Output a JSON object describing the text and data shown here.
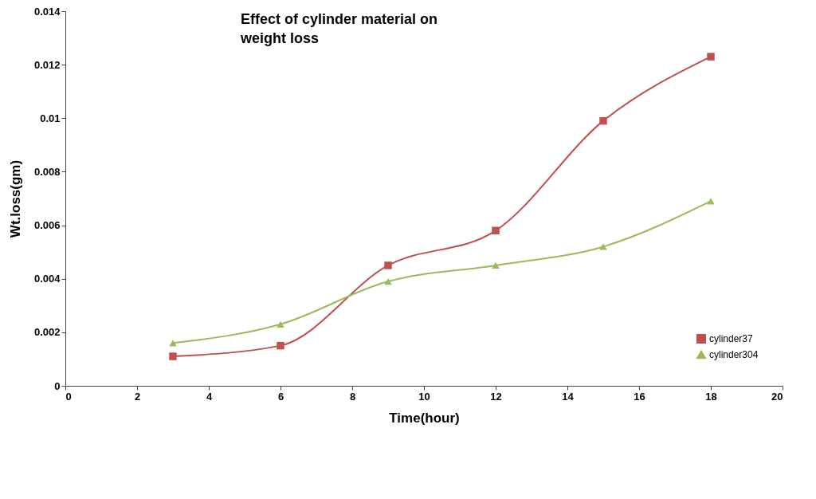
{
  "chart_data": {
    "type": "line",
    "title": "Effect of cylinder material on\nweight loss",
    "xlabel": "Time(hour)",
    "ylabel": "Wt.loss(gm)",
    "x": [
      3,
      6,
      9,
      12,
      15,
      18
    ],
    "series": [
      {
        "name": "cylinder37",
        "color": "#c0504d",
        "marker": "square",
        "values": [
          0.0011,
          0.0015,
          0.0045,
          0.0058,
          0.0099,
          0.0123
        ]
      },
      {
        "name": "cylinder304",
        "color": "#9bbb59",
        "marker": "triangle",
        "values": [
          0.0016,
          0.0023,
          0.0039,
          0.0045,
          0.0052,
          0.0069
        ]
      }
    ],
    "xlim": [
      0,
      20
    ],
    "xticks": [
      0,
      2,
      4,
      6,
      8,
      10,
      12,
      14,
      16,
      18,
      20
    ],
    "ylim": [
      0,
      0.014
    ],
    "yticks": [
      0,
      0.002,
      0.004,
      0.006,
      0.008,
      0.01,
      0.012,
      0.014
    ],
    "grid": false,
    "legend": "bottom right",
    "line_style": "solid"
  }
}
